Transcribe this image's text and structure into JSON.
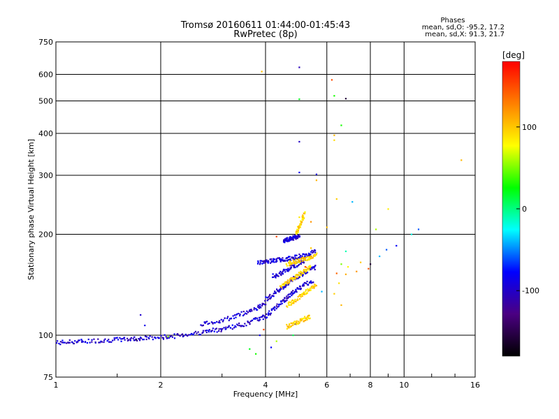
{
  "chart_data": {
    "type": "scatter",
    "title": "Tromsø 20160611 01:44:00-01:45:43",
    "subtitle": "RwPretec (8p)",
    "xlabel": "Frequency [MHz]",
    "ylabel": "Stationary phase Virtual Height [km]",
    "xscale": "log",
    "yscale": "log",
    "xlim": [
      1,
      16
    ],
    "ylim": [
      75,
      750
    ],
    "x_ticks": [
      1,
      2,
      4,
      6,
      8,
      10,
      16
    ],
    "y_ticks": [
      75,
      100,
      200,
      300,
      400,
      500,
      600,
      750
    ],
    "grid": true,
    "phase_header": "Phases",
    "phase_stats": [
      "mean, sd,O: -95.2, 17.2",
      "mean, sd,X:  91.3, 21.7"
    ],
    "colorbar": {
      "label": "[deg]",
      "min": -180,
      "max": 180,
      "ticks": [
        100,
        0,
        -100
      ],
      "colors": [
        "#000000",
        "#4b0082",
        "#0000ff",
        "#00ffff",
        "#00ff00",
        "#ffff00",
        "#ff8000",
        "#ff0000"
      ]
    },
    "o_trace": {
      "phase_deg": -95,
      "segments": [
        {
          "x": [
            1.0,
            1.1,
            1.2,
            1.35,
            1.5,
            1.65,
            1.8,
            2.0,
            2.2,
            2.45,
            2.7,
            2.95,
            3.2,
            3.5,
            3.8
          ],
          "y": [
            95,
            95.5,
            96,
            96.5,
            97,
            97.5,
            98,
            98.5,
            99.5,
            101,
            102.5,
            104,
            106,
            108,
            112
          ]
        },
        {
          "x": [
            2.6,
            2.9,
            3.2,
            3.5,
            3.8,
            4.0
          ],
          "y": [
            108,
            110,
            113,
            117,
            121,
            124
          ]
        },
        {
          "x": [
            3.8,
            4.0,
            4.2,
            4.4,
            4.6,
            4.8,
            5.0,
            5.2,
            5.5
          ],
          "y": [
            111,
            114,
            119,
            124,
            129,
            134,
            138,
            142,
            146
          ]
        },
        {
          "x": [
            4.0,
            4.2,
            4.4,
            4.6,
            4.8,
            5.0,
            5.3,
            5.6
          ],
          "y": [
            128,
            132,
            137,
            142,
            147,
            151,
            156,
            160
          ]
        },
        {
          "x": [
            3.8,
            4.0,
            4.2,
            4.4,
            4.6,
            4.8,
            5.0,
            5.3,
            5.6
          ],
          "y": [
            165,
            166,
            167,
            168,
            169,
            170,
            172,
            175,
            178
          ]
        },
        {
          "x": [
            4.2,
            4.4,
            4.6,
            4.8,
            5.0,
            5.2
          ],
          "y": [
            150,
            153,
            156,
            160,
            164,
            168
          ]
        },
        {
          "x": [
            4.5,
            4.6,
            4.7,
            4.8,
            4.9,
            5.0
          ],
          "y": [
            190,
            192,
            194,
            195,
            196,
            197
          ]
        }
      ],
      "isolated": [
        [
          5.0,
          630
        ],
        [
          5.0,
          378
        ],
        [
          5.0,
          306
        ],
        [
          5.6,
          302
        ],
        [
          4.85,
          108
        ],
        [
          3.85,
          100
        ],
        [
          1.75,
          115
        ],
        [
          1.8,
          107
        ]
      ]
    },
    "x_trace": {
      "phase_deg": 95,
      "segments": [
        {
          "x": [
            4.6,
            4.8,
            5.0,
            5.2,
            5.4
          ],
          "y": [
            106,
            108,
            110,
            112,
            114
          ]
        },
        {
          "x": [
            4.6,
            4.8,
            5.0,
            5.2,
            5.4,
            5.6
          ],
          "y": [
            123,
            126,
            130,
            134,
            138,
            141
          ]
        },
        {
          "x": [
            4.4,
            4.6,
            4.8,
            5.0,
            5.2,
            5.4
          ],
          "y": [
            140,
            144,
            148,
            152,
            156,
            160
          ]
        },
        {
          "x": [
            4.6,
            4.8,
            5.0,
            5.2,
            5.4,
            5.6
          ],
          "y": [
            163,
            165,
            167,
            169,
            171,
            174
          ]
        },
        {
          "x": [
            4.9,
            5.0,
            5.1,
            5.2
          ],
          "y": [
            200,
            212,
            222,
            232
          ]
        }
      ],
      "isolated": [
        [
          3.9,
          612
        ],
        [
          6.3,
          395
        ],
        [
          6.3,
          382
        ],
        [
          5.6,
          290
        ],
        [
          6.4,
          255
        ],
        [
          14.6,
          333
        ],
        [
          9.0,
          238
        ],
        [
          5.0,
          225
        ],
        [
          6.0,
          210
        ],
        [
          6.8,
          152
        ],
        [
          6.5,
          143
        ],
        [
          6.3,
          133
        ],
        [
          6.6,
          123
        ]
      ]
    },
    "scatter_points": [
      {
        "x": 6.2,
        "y": 578,
        "phase": 150
      },
      {
        "x": 6.8,
        "y": 508,
        "phase": -160
      },
      {
        "x": 5.0,
        "y": 506,
        "phase": 20
      },
      {
        "x": 6.3,
        "y": 518,
        "phase": 30
      },
      {
        "x": 6.6,
        "y": 423,
        "phase": 30
      },
      {
        "x": 7.1,
        "y": 250,
        "phase": -40
      },
      {
        "x": 8.3,
        "y": 207,
        "phase": 60
      },
      {
        "x": 8.9,
        "y": 180,
        "phase": -60
      },
      {
        "x": 8.5,
        "y": 172,
        "phase": -40
      },
      {
        "x": 8.0,
        "y": 163,
        "phase": -160
      },
      {
        "x": 7.9,
        "y": 158,
        "phase": 150
      },
      {
        "x": 10.5,
        "y": 200,
        "phase": -20
      },
      {
        "x": 11.0,
        "y": 207,
        "phase": -60
      },
      {
        "x": 9.5,
        "y": 185,
        "phase": -80
      },
      {
        "x": 6.8,
        "y": 178,
        "phase": -10
      },
      {
        "x": 6.6,
        "y": 163,
        "phase": 50
      },
      {
        "x": 6.9,
        "y": 160,
        "phase": 80
      },
      {
        "x": 7.5,
        "y": 165,
        "phase": 100
      },
      {
        "x": 7.3,
        "y": 155,
        "phase": 120
      },
      {
        "x": 6.4,
        "y": 153,
        "phase": 140
      },
      {
        "x": 5.4,
        "y": 182,
        "phase": 100
      },
      {
        "x": 4.8,
        "y": 100,
        "phase": 10
      },
      {
        "x": 3.6,
        "y": 91,
        "phase": 20
      },
      {
        "x": 3.75,
        "y": 88,
        "phase": 30
      },
      {
        "x": 4.15,
        "y": 92,
        "phase": -80
      },
      {
        "x": 4.3,
        "y": 96,
        "phase": 60
      },
      {
        "x": 3.95,
        "y": 104,
        "phase": 150
      },
      {
        "x": 2.1,
        "y": 99,
        "phase": 50
      },
      {
        "x": 1.7,
        "y": 97,
        "phase": -160
      },
      {
        "x": 4.3,
        "y": 197,
        "phase": 150
      },
      {
        "x": 5.4,
        "y": 218,
        "phase": 120
      },
      {
        "x": 5.2,
        "y": 160,
        "phase": 150
      },
      {
        "x": 5.8,
        "y": 135,
        "phase": -40
      }
    ]
  }
}
